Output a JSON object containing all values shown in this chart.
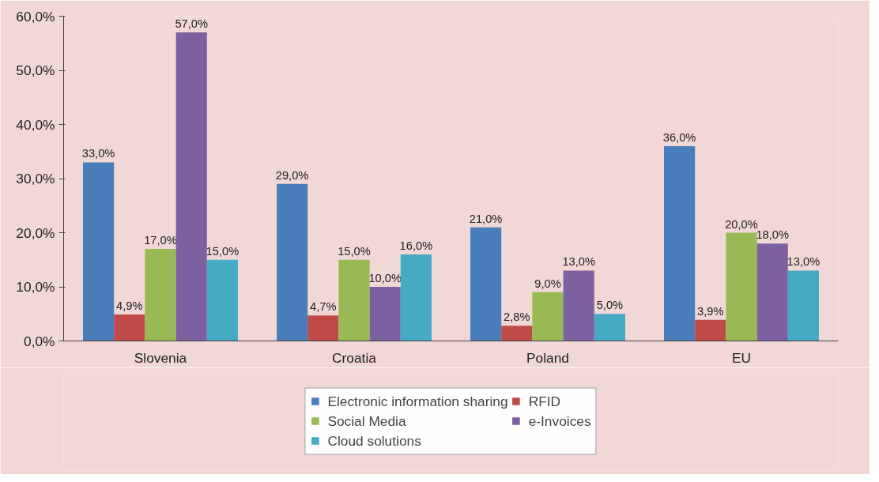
{
  "chart_data": {
    "type": "bar",
    "categories": [
      "Slovenia",
      "Croatia",
      "Poland",
      "EU"
    ],
    "series": [
      {
        "name": "Electronic information sharing",
        "color": "#4a7ebb",
        "values": [
          33,
          29,
          21,
          36
        ],
        "value_labels": [
          "33,0%",
          "29,0%",
          "21,0%",
          "36,0%"
        ]
      },
      {
        "name": "RFID",
        "color": "#be4b48",
        "values": [
          4.9,
          4.7,
          2.8,
          3.9
        ],
        "value_labels": [
          "4,9%",
          "4,7%",
          "2,8%",
          "3,9%"
        ]
      },
      {
        "name": "Social Media",
        "color": "#98b954",
        "values": [
          17,
          15,
          9,
          20
        ],
        "value_labels": [
          "17,0%",
          "15,0%",
          "9,0%",
          "20,0%"
        ]
      },
      {
        "name": "e-Invoices",
        "color": "#7d60a0",
        "values": [
          57,
          10,
          13,
          18
        ],
        "value_labels": [
          "57,0%",
          "10,0%",
          "13,0%",
          "18,0%"
        ]
      },
      {
        "name": "Cloud solutions",
        "color": "#46aac5",
        "values": [
          15,
          16,
          5,
          13
        ],
        "value_labels": [
          "15,0%",
          "16,0%",
          "5,0%",
          "13,0%"
        ]
      }
    ],
    "ylim": [
      0,
      60
    ],
    "yticks": [
      {
        "value": 0,
        "label": "0,0%"
      },
      {
        "value": 10,
        "label": "10,0%"
      },
      {
        "value": 20,
        "label": "20,0%"
      },
      {
        "value": 30,
        "label": "30,0%"
      },
      {
        "value": 40,
        "label": "40,0%"
      },
      {
        "value": 50,
        "label": "50,0%"
      },
      {
        "value": 60,
        "label": "60,0%"
      }
    ],
    "grid": false,
    "legend": "bottom"
  }
}
